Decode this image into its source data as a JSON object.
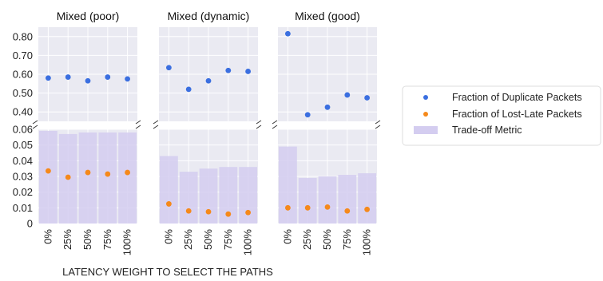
{
  "chart_data": {
    "type": "bar",
    "categories": [
      "0%",
      "25%",
      "50%",
      "75%",
      "100%"
    ],
    "xlabel": "LATENCY WEIGHT TO SELECT THE PATHS",
    "upper_axis": {
      "ylim": [
        0.35,
        0.85
      ],
      "ticks": [
        "0.80",
        "0.70",
        "0.60",
        "0.50",
        "0.40"
      ],
      "tick_values": [
        0.8,
        0.7,
        0.6,
        0.5,
        0.4
      ]
    },
    "lower_axis": {
      "ylim": [
        0,
        0.06
      ],
      "ticks": [
        "0.06",
        "0.05",
        "0.04",
        "0.03",
        "0.02",
        "0.01",
        "0"
      ],
      "tick_values": [
        0.06,
        0.05,
        0.04,
        0.03,
        0.02,
        0.01,
        0
      ]
    },
    "grid": true,
    "legend_position": "right",
    "legend": [
      {
        "label": "Fraction of Duplicate Packets",
        "marker": "dot",
        "color": "#3b6fe0"
      },
      {
        "label": "Fraction of Lost-Late Packets",
        "marker": "dot",
        "color": "#f5891b"
      },
      {
        "label": "Trade-off Metric",
        "marker": "bar",
        "color": "#d4cdf0"
      }
    ],
    "panels": [
      {
        "title": "Mixed (poor)",
        "duplicate": [
          0.58,
          0.585,
          0.565,
          0.585,
          0.575
        ],
        "lost_late": [
          0.0335,
          0.0295,
          0.0325,
          0.0315,
          0.0325
        ],
        "tradeoff": [
          0.059,
          0.057,
          0.058,
          0.058,
          0.058
        ]
      },
      {
        "title": "Mixed (dynamic)",
        "duplicate": [
          0.635,
          0.52,
          0.565,
          0.62,
          0.615
        ],
        "lost_late": [
          0.0125,
          0.008,
          0.0075,
          0.006,
          0.007
        ],
        "tradeoff": [
          0.043,
          0.033,
          0.035,
          0.036,
          0.036
        ]
      },
      {
        "title": "Mixed (good)",
        "duplicate": [
          0.815,
          0.385,
          0.425,
          0.49,
          0.475
        ],
        "lost_late": [
          0.01,
          0.01,
          0.0105,
          0.008,
          0.009
        ],
        "tradeoff": [
          0.049,
          0.029,
          0.03,
          0.031,
          0.032
        ]
      }
    ]
  }
}
